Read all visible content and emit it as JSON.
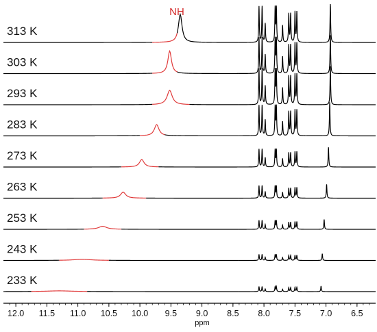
{
  "chart_data": {
    "type": "line",
    "title": "",
    "xlabel": "ppm",
    "ylabel": "",
    "xlim": [
      12.2,
      6.2
    ],
    "x_ticks": [
      "12.0",
      "11.5",
      "11.0",
      "10.5",
      "10.0",
      "9.5",
      "9.0",
      "8.5",
      "8.0",
      "7.5",
      "7.0",
      "6.5"
    ],
    "peak_annotation": {
      "label": "NH",
      "color": "#d42a2a"
    },
    "colors": {
      "spectrum": "#000000",
      "nh_region": "#e03a3a"
    },
    "series": [
      {
        "name": "313 K",
        "nh_shift": 9.35,
        "nh_height": 0.75,
        "nh_width": 0.035,
        "nh_region": [
          9.8,
          9.4
        ],
        "aromatic_scale": 1.0,
        "singlet": 6.93
      },
      {
        "name": "303 K",
        "nh_shift": 9.52,
        "nh_height": 0.6,
        "nh_width": 0.035,
        "nh_region": [
          9.8,
          9.4
        ],
        "aromatic_scale": 1.0,
        "singlet": 6.93
      },
      {
        "name": "293 K",
        "nh_shift": 9.52,
        "nh_height": 0.38,
        "nh_width": 0.05,
        "nh_region": [
          9.8,
          9.2
        ],
        "aromatic_scale": 1.0,
        "singlet": 6.93
      },
      {
        "name": "283 K",
        "nh_shift": 9.73,
        "nh_height": 0.3,
        "nh_width": 0.045,
        "nh_region": [
          10.0,
          9.6
        ],
        "aromatic_scale": 0.85,
        "singlet": 6.94
      },
      {
        "name": "273 K",
        "nh_shift": 9.97,
        "nh_height": 0.2,
        "nh_width": 0.045,
        "nh_region": [
          10.3,
          9.7
        ],
        "aromatic_scale": 0.5,
        "singlet": 6.96
      },
      {
        "name": "263 K",
        "nh_shift": 10.27,
        "nh_height": 0.16,
        "nh_width": 0.05,
        "nh_region": [
          10.6,
          9.9
        ],
        "aromatic_scale": 0.35,
        "singlet": 6.99
      },
      {
        "name": "253 K",
        "nh_shift": 10.6,
        "nh_height": 0.08,
        "nh_width": 0.08,
        "nh_region": [
          10.9,
          10.3
        ],
        "aromatic_scale": 0.25,
        "singlet": 7.03
      },
      {
        "name": "243 K",
        "nh_shift": 10.93,
        "nh_height": 0.03,
        "nh_width": 0.18,
        "nh_region": [
          11.3,
          10.5
        ],
        "aromatic_scale": 0.17,
        "singlet": 7.06
      },
      {
        "name": "233 K",
        "nh_shift": 11.3,
        "nh_height": 0.02,
        "nh_width": 0.25,
        "nh_region": [
          11.75,
          10.85
        ],
        "aromatic_scale": 0.14,
        "singlet": 7.08
      }
    ],
    "aromatic_peaks": [
      {
        "ppm": 8.08,
        "height": 0.95
      },
      {
        "ppm": 8.03,
        "height": 0.95
      },
      {
        "ppm": 7.98,
        "height": 0.5
      },
      {
        "ppm": 7.82,
        "height": 0.9
      },
      {
        "ppm": 7.8,
        "height": 0.9
      },
      {
        "ppm": 7.7,
        "height": 0.45
      },
      {
        "ppm": 7.6,
        "height": 0.75
      },
      {
        "ppm": 7.57,
        "height": 0.75
      },
      {
        "ppm": 7.5,
        "height": 0.8
      },
      {
        "ppm": 7.47,
        "height": 0.8
      }
    ]
  }
}
